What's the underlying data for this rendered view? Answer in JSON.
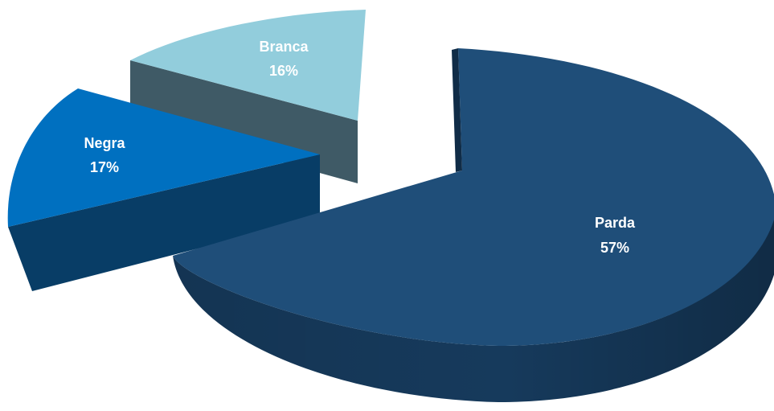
{
  "chart_data": {
    "type": "pie",
    "title": "",
    "three_d": true,
    "exploded": true,
    "legend": "none",
    "slices": [
      {
        "name": "Parda",
        "value": 57,
        "label": "57%",
        "color": "#1F4E79",
        "side_color": "#163A5C"
      },
      {
        "name": "Negra",
        "value": 17,
        "label": "17%",
        "color": "#0070C0",
        "side_color": "#083D66"
      },
      {
        "name": "Branca",
        "value": 16,
        "label": "16%",
        "color": "#92CDDC",
        "side_color": "#3F5A66"
      }
    ]
  }
}
